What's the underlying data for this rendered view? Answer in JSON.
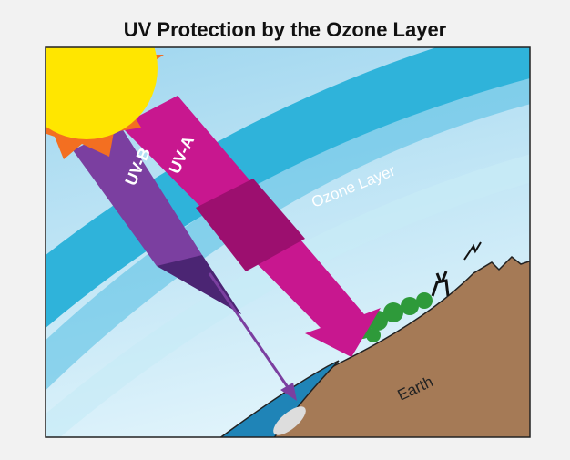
{
  "title": "UV Protection by the Ozone Layer",
  "labels": {
    "uv_b": "UV-B",
    "uv_a": "UV-A",
    "ozone_layer": "Ozone Layer",
    "earth": "Earth"
  }
}
